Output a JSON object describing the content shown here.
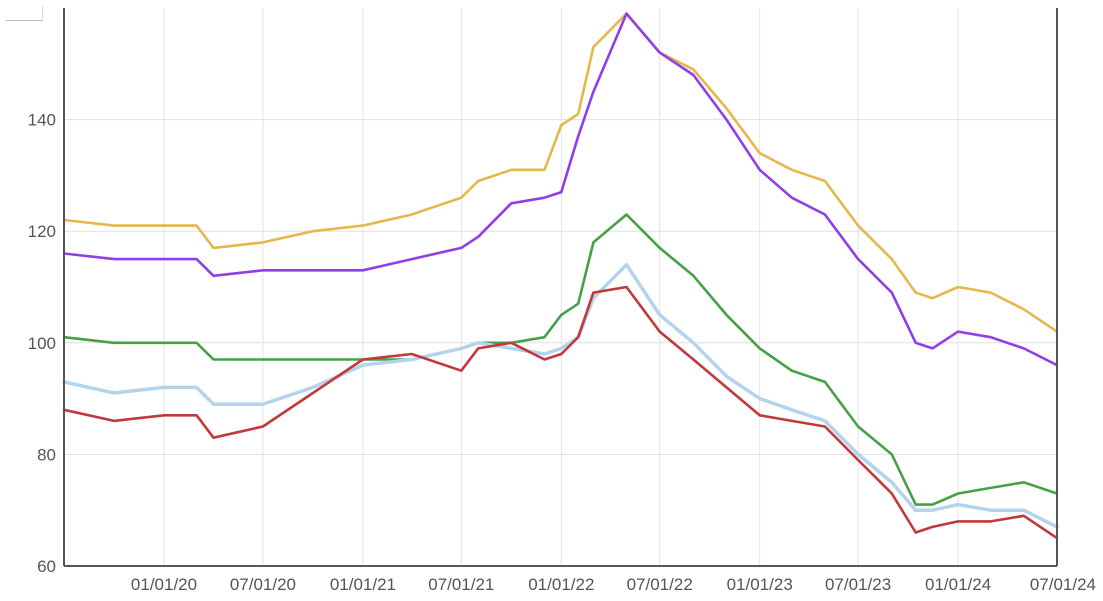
{
  "chart_data": {
    "type": "line",
    "title": "",
    "xlabel": "",
    "ylabel": "",
    "x_tick_labels": [
      "01/01/20",
      "07/01/20",
      "01/01/21",
      "07/01/21",
      "01/01/22",
      "07/01/22",
      "01/01/23",
      "07/01/23",
      "01/01/24",
      "07/01/24"
    ],
    "x_ticks": [
      "2020-01-01",
      "2020-07-01",
      "2021-01-01",
      "2021-07-01",
      "2022-01-01",
      "2022-07-01",
      "2023-01-01",
      "2023-07-01",
      "2024-01-01",
      "2024-07-01"
    ],
    "x_range": [
      "2019-07-01",
      "2024-07-01"
    ],
    "ylim": [
      60,
      160
    ],
    "y_tick_labels": [
      "60",
      "80",
      "100",
      "120",
      "140"
    ],
    "y_ticks": [
      60,
      80,
      100,
      120,
      140
    ],
    "grid": true,
    "legend": "none",
    "x": [
      "2019-07-01",
      "2019-10-01",
      "2020-01-01",
      "2020-03-01",
      "2020-04-01",
      "2020-07-01",
      "2020-10-01",
      "2021-01-01",
      "2021-04-01",
      "2021-07-01",
      "2021-08-01",
      "2021-10-01",
      "2021-12-01",
      "2022-01-01",
      "2022-02-01",
      "2022-03-01",
      "2022-05-01",
      "2022-07-01",
      "2022-09-01",
      "2022-11-01",
      "2023-01-01",
      "2023-03-01",
      "2023-05-01",
      "2023-07-01",
      "2023-09-01",
      "2023-10-15",
      "2023-11-15",
      "2024-01-01",
      "2024-03-01",
      "2024-05-01",
      "2024-07-01"
    ],
    "series": [
      {
        "color": "#e6b74a",
        "values": [
          122,
          121,
          121,
          121,
          117,
          118,
          120,
          121,
          123,
          126,
          129,
          131,
          131,
          139,
          141,
          153,
          159,
          152,
          149,
          142,
          134,
          131,
          129,
          121,
          115,
          109,
          108,
          110,
          109,
          106,
          102
        ]
      },
      {
        "color": "#8f3ee8",
        "values": [
          116,
          115,
          115,
          115,
          112,
          113,
          113,
          113,
          115,
          117,
          119,
          125,
          126,
          127,
          137,
          145,
          159,
          152,
          148,
          140,
          131,
          126,
          123,
          115,
          109,
          100,
          99,
          102,
          101,
          99,
          96
        ]
      },
      {
        "color": "#46a046",
        "values": [
          101,
          100,
          100,
          100,
          97,
          97,
          97,
          97,
          97,
          99,
          100,
          100,
          101,
          105,
          107,
          118,
          123,
          117,
          112,
          105,
          99,
          95,
          93,
          85,
          80,
          71,
          71,
          73,
          74,
          75,
          73
        ]
      },
      {
        "color": "#b4d3ec",
        "values": [
          93,
          91,
          92,
          92,
          89,
          89,
          92,
          96,
          97,
          99,
          100,
          99,
          98,
          99,
          101,
          108,
          114,
          105,
          100,
          94,
          90,
          88,
          86,
          80,
          75,
          70,
          70,
          71,
          70,
          70,
          67
        ]
      },
      {
        "color": "#c0393b",
        "values": [
          88,
          86,
          87,
          87,
          83,
          85,
          91,
          97,
          98,
          95,
          99,
          100,
          97,
          98,
          101,
          109,
          110,
          102,
          97,
          92,
          87,
          86,
          85,
          79,
          73,
          66,
          67,
          68,
          68,
          69,
          65
        ]
      }
    ]
  }
}
